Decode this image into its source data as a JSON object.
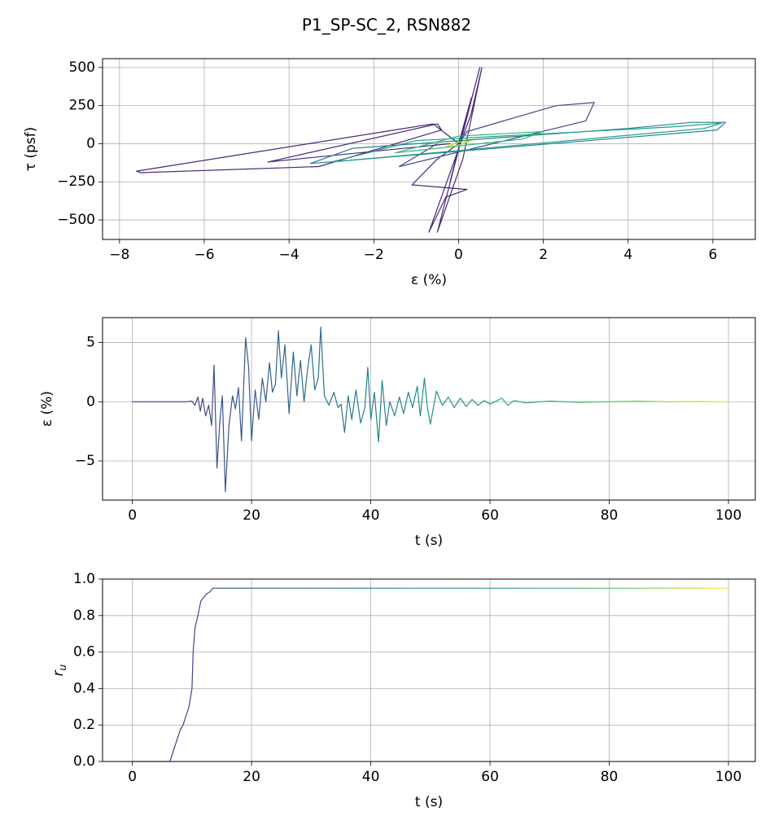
{
  "title": "P1_SP-SC_2, RSN882",
  "chart_data": [
    {
      "type": "line",
      "xlabel": "ε (%)",
      "ylabel": "τ (psf)",
      "xlim": [
        -8.4,
        7.0
      ],
      "ylim": [
        -628,
        558
      ],
      "xticks": [
        {
          "value": -8,
          "label": "−8"
        },
        {
          "value": -6,
          "label": "−6"
        },
        {
          "value": -4,
          "label": "−4"
        },
        {
          "value": -2,
          "label": "−2"
        },
        0,
        2,
        4,
        6
      ],
      "yticks": [
        {
          "value": -500,
          "label": "−500"
        },
        {
          "value": -250,
          "label": "−250"
        },
        0,
        250,
        500
      ],
      "grid": true,
      "series": [
        {
          "color": "#482878",
          "x": [
            0,
            0.3,
            -0.2,
            0.5,
            -0.5,
            0.1,
            0.55,
            0.3,
            -0.7,
            -0.3,
            0.2,
            -1.1,
            -0.5,
            0,
            -0.6,
            -7.6,
            -7.5,
            -3.3,
            -0.4,
            -0.5,
            -4.5,
            -0.2
          ],
          "values": [
            0,
            300,
            -250,
            500,
            -580,
            -100,
            500,
            200,
            -580,
            -350,
            -300,
            -270,
            -100,
            0,
            130,
            -180,
            -190,
            -150,
            90,
            130,
            -120,
            0
          ]
        },
        {
          "color": "#3e4a89",
          "x": [
            0,
            0.2,
            2.3,
            3.2,
            3.0,
            -1.4,
            -0.5
          ],
          "values": [
            0,
            80,
            250,
            270,
            150,
            -150,
            0
          ]
        },
        {
          "color": "#26828e",
          "x": [
            -3.5,
            -2.5,
            4,
            5.5,
            6.3,
            6.1,
            -3.5
          ],
          "values": [
            -130,
            -30,
            100,
            140,
            140,
            90,
            -130
          ]
        },
        {
          "color": "#1f9e89",
          "x": [
            -3,
            -1,
            5,
            6.2,
            5.8,
            -3
          ],
          "values": [
            -120,
            20,
            110,
            135,
            100,
            -120
          ]
        },
        {
          "color": "#35b779",
          "x": [
            -1.5,
            0,
            2,
            1.5,
            -1.5
          ],
          "values": [
            -60,
            50,
            80,
            30,
            -60
          ]
        },
        {
          "color": "#b5de2b",
          "x": [
            -0.3,
            0,
            0.3,
            0,
            -0.3
          ],
          "values": [
            -20,
            10,
            20,
            -10,
            -20
          ]
        }
      ]
    },
    {
      "type": "line",
      "xlabel": "t (s)",
      "ylabel": "ε (%)",
      "xlim": [
        -5,
        104.5
      ],
      "ylim": [
        -8.3,
        7.1
      ],
      "xticks": [
        0,
        20,
        40,
        60,
        80,
        100
      ],
      "yticks": [
        {
          "value": -5,
          "label": "−5"
        },
        0,
        5
      ],
      "grid": true,
      "colors": [
        "#46337e",
        "#365c8d",
        "#277f8e",
        "#1fa187",
        "#4ac16d",
        "#fde725"
      ],
      "series": [
        {
          "x": [
            0,
            9,
            10,
            10.5,
            11,
            11.4,
            11.8,
            12.3,
            12.8,
            13.3,
            13.7,
            14.2,
            14.7,
            15.1,
            15.6,
            16.2,
            16.8,
            17.3,
            17.8,
            18.3,
            19,
            19.5,
            20,
            20.6,
            21.2,
            21.8,
            22.4,
            23,
            23.5,
            24,
            24.5,
            25,
            25.6,
            26.3,
            27,
            27.6,
            28.2,
            28.8,
            29.4,
            30,
            30.6,
            31.2,
            31.6,
            32.2,
            33,
            33.8,
            34.5,
            35,
            35.6,
            36.2,
            36.8,
            37.5,
            38.3,
            39,
            39.5,
            40,
            40.6,
            41.3,
            41.9,
            42.6,
            43.2,
            44,
            44.8,
            45.5,
            46.3,
            47,
            47.8,
            48.3,
            49,
            49.5,
            50,
            51,
            52,
            53,
            54,
            55,
            56,
            57,
            58,
            59,
            60,
            62,
            63,
            64,
            66,
            70,
            75,
            80,
            85,
            90,
            95,
            100
          ],
          "values": [
            0,
            0,
            0.05,
            -0.3,
            0.4,
            -0.8,
            0.3,
            -1.2,
            -0.3,
            -2,
            3.1,
            -5.6,
            -1.5,
            0.5,
            -7.6,
            -2,
            0.5,
            -0.6,
            1.2,
            -3.3,
            5.4,
            3,
            -3.3,
            1,
            -1.5,
            2,
            0,
            3.3,
            0.8,
            1.5,
            6,
            2,
            4.8,
            -1,
            4.2,
            0.5,
            3.5,
            0,
            2.8,
            4.8,
            1,
            2,
            6.3,
            0.5,
            -0.3,
            0.8,
            -0.5,
            -0.2,
            -2.6,
            0.5,
            -1.5,
            1,
            -1.8,
            -0.5,
            2.9,
            -1.5,
            0.8,
            -3.4,
            1.8,
            -2,
            0,
            -1.2,
            0.4,
            -1,
            0.8,
            -0.5,
            1.3,
            -1.2,
            2,
            -0.5,
            -1.9,
            0.9,
            -0.3,
            0.4,
            -0.5,
            0.3,
            -0.4,
            0.2,
            -0.3,
            0.1,
            -0.2,
            0.3,
            -0.3,
            0.1,
            -0.1,
            0.05,
            -0.05,
            0,
            0.05,
            0,
            0.02,
            0
          ]
        }
      ]
    },
    {
      "type": "line",
      "xlabel": "t (s)",
      "ylabel": {
        "base": "r",
        "sub": "u"
      },
      "xlim": [
        -5,
        104.5
      ],
      "ylim": [
        0,
        1
      ],
      "xticks": [
        0,
        20,
        40,
        60,
        80,
        100
      ],
      "yticks": [
        {
          "value": 0,
          "label": "0.0"
        },
        0.2,
        0.4,
        0.6,
        0.8,
        {
          "value": 1,
          "label": "1.0"
        }
      ],
      "grid": true,
      "colors": [
        "#46337e",
        "#365c8d",
        "#277f8e",
        "#1fa187",
        "#4ac16d",
        "#fde725"
      ],
      "series": [
        {
          "x": [
            0,
            6.3,
            6.8,
            7.5,
            8,
            8.5,
            9,
            9.5,
            10,
            10.2,
            10.5,
            11,
            11.5,
            12,
            12.5,
            13,
            13.5,
            100
          ],
          "values": [
            0,
            0,
            0.05,
            0.12,
            0.17,
            0.2,
            0.25,
            0.3,
            0.4,
            0.6,
            0.73,
            0.8,
            0.88,
            0.9,
            0.92,
            0.93,
            0.95,
            0.95
          ]
        }
      ]
    }
  ]
}
